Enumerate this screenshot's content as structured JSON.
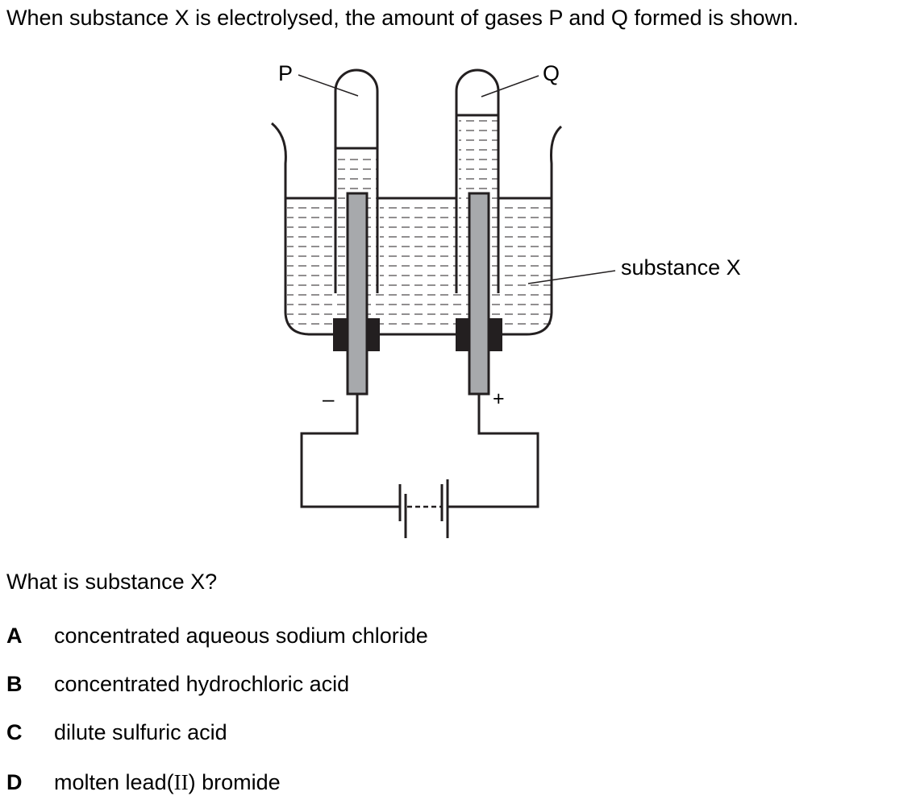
{
  "question": {
    "intro": "When substance X is electrolysed, the amount of gases P and Q formed is shown.",
    "prompt": "What is substance X?"
  },
  "diagram": {
    "labels": {
      "gas_left": "P",
      "gas_right": "Q",
      "substance": "substance X",
      "negative_terminal": "–",
      "positive_terminal": "+"
    },
    "colors": {
      "electrode": "#a7a9ac",
      "bung": "#231f20",
      "line": "#231f20"
    }
  },
  "options": [
    {
      "letter": "A",
      "text": "concentrated aqueous sodium chloride"
    },
    {
      "letter": "B",
      "text": "concentrated hydrochloric acid"
    },
    {
      "letter": "C",
      "text": "dilute sulfuric acid"
    },
    {
      "letter": "D",
      "text_before": "molten lead(",
      "text_roman": "II",
      "text_after": ") bromide"
    }
  ]
}
